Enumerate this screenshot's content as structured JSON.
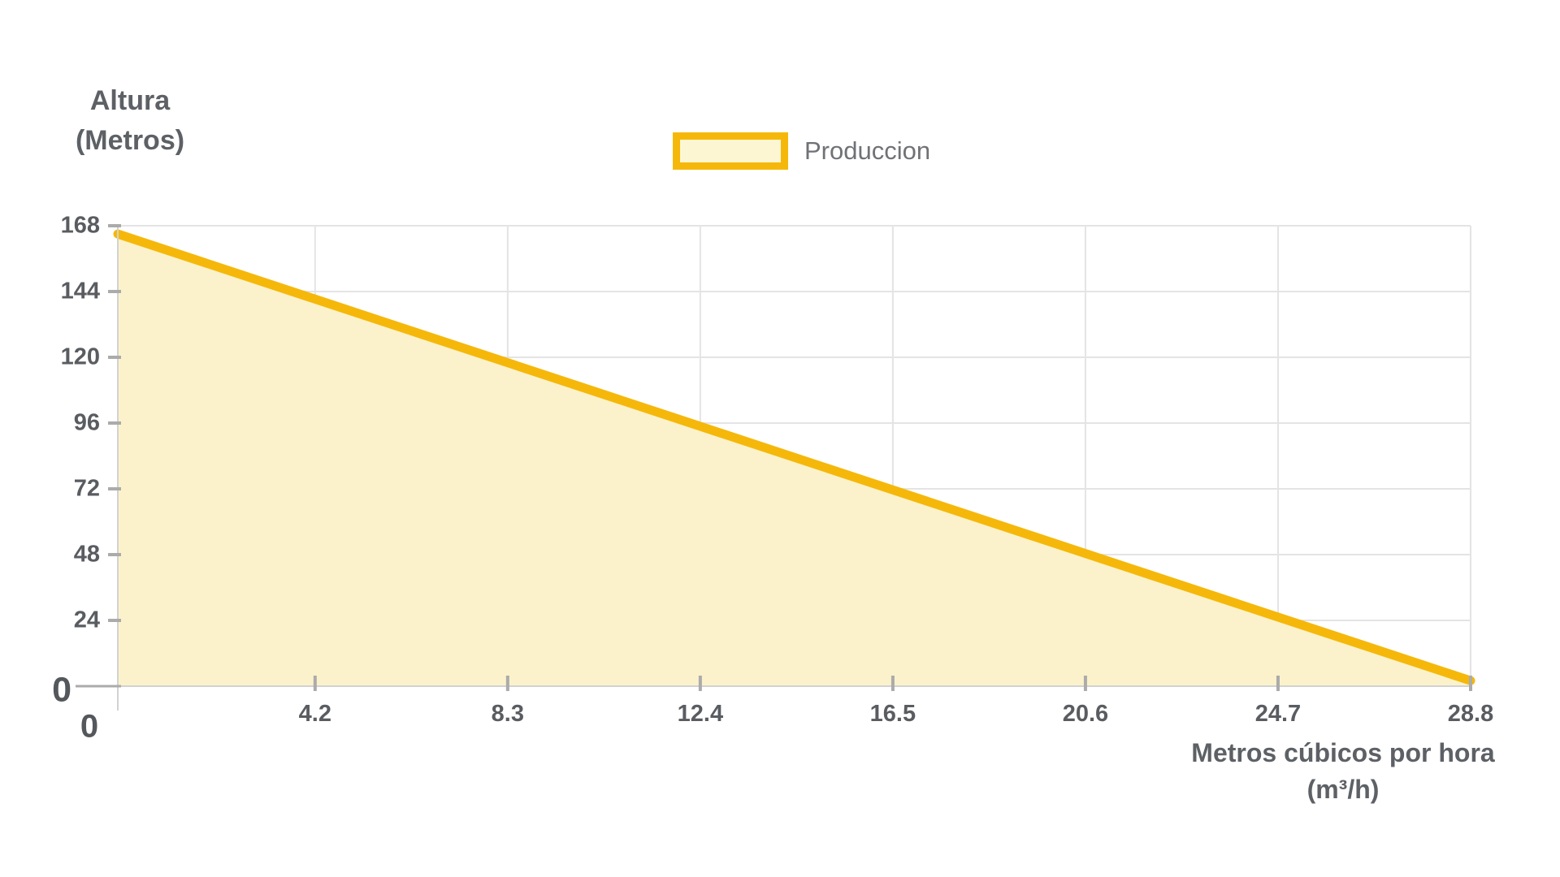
{
  "chart_data": {
    "type": "area",
    "title": "",
    "series": [
      {
        "name": "Produccion",
        "points": [
          {
            "x": 0,
            "y": 165
          },
          {
            "x": 28.8,
            "y": 2
          }
        ]
      }
    ],
    "x": {
      "label_line1": "Metros cúbicos por hora",
      "label_line2": "(m³/h)",
      "ticks": [
        4.2,
        8.3,
        12.4,
        16.5,
        20.6,
        24.7,
        28.8
      ],
      "origin_label": "0",
      "lim": [
        0,
        28.8
      ]
    },
    "y": {
      "label_line1": "Altura",
      "label_line2": "(Metros)",
      "ticks": [
        168,
        144,
        120,
        96,
        72,
        48,
        24
      ],
      "origin_label": "0",
      "lim": [
        0,
        168
      ]
    },
    "grid": true,
    "legend": {
      "label": "Produccion",
      "position": "top-center"
    },
    "colors": {
      "line": "#F5B80A",
      "fill": "#FBF2CB",
      "legend_fill": "#FDF6D3",
      "grid": "#E4E4E4",
      "axis": "#D2D2D2",
      "tick_mark": "#ABABAB"
    }
  }
}
